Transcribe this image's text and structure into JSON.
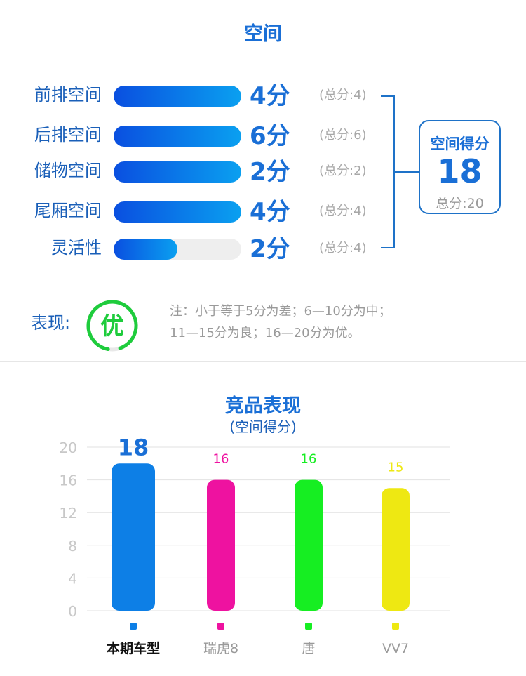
{
  "title": "空间",
  "rows": [
    {
      "label": "前排空间",
      "score": "4分",
      "score_value": 4,
      "total": "(总分:4)",
      "total_value": 4
    },
    {
      "label": "后排空间",
      "score": "6分",
      "score_value": 6,
      "total": "(总分:6)",
      "total_value": 6
    },
    {
      "label": "储物空间",
      "score": "2分",
      "score_value": 2,
      "total": "(总分:2)",
      "total_value": 2
    },
    {
      "label": "尾厢空间",
      "score": "4分",
      "score_value": 4,
      "total": "(总分:4)",
      "total_value": 4
    },
    {
      "label": "灵活性",
      "score": "2分",
      "score_value": 2,
      "total": "(总分:4)",
      "total_value": 4
    }
  ],
  "summary": {
    "label": "空间得分",
    "value": "18",
    "total": "总分:20"
  },
  "performance": {
    "label": "表现:",
    "badge": "优",
    "note_line1": "注：小于等于5分为差；6—10分为中；",
    "note_line2": "11—15分为良；16—20分为优。"
  },
  "colors": {
    "accent": "#1a6fd6",
    "badge": "#1ecc3c"
  },
  "chart_data": {
    "type": "bar",
    "title": "竞品表现",
    "subtitle": "(空间得分)",
    "categories": [
      "本期车型",
      "瑞虎8",
      "唐",
      "VV7"
    ],
    "values": [
      18,
      16,
      16,
      15
    ],
    "value_labels": [
      "18",
      "16",
      "16",
      "15"
    ],
    "colors": [
      "#0d7fe6",
      "#ee12a0",
      "#16ee22",
      "#eee812"
    ],
    "yticks": [
      "0",
      "4",
      "8",
      "12",
      "16",
      "20"
    ],
    "ylim": [
      0,
      20
    ],
    "grid": true
  }
}
